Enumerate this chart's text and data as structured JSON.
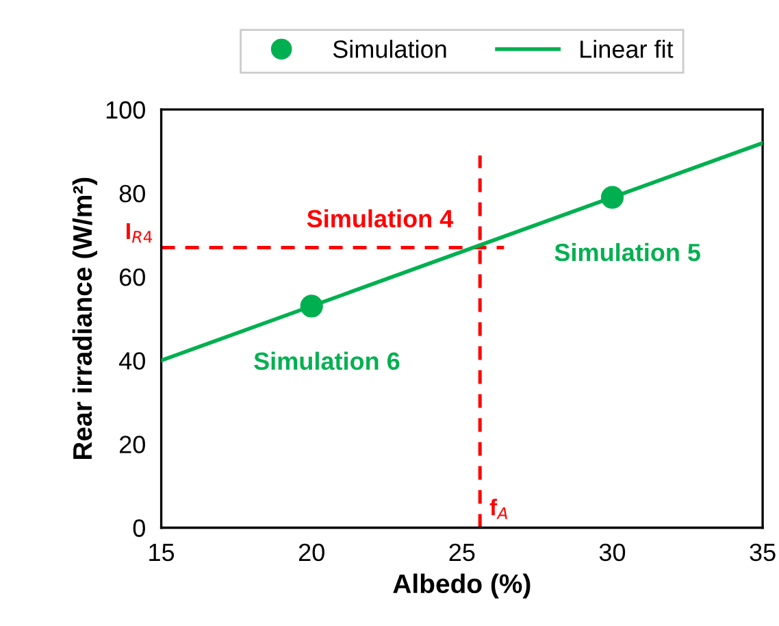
{
  "chart_data": {
    "type": "scatter",
    "xlabel": "Albedo (%)",
    "ylabel": "Rear irradiance (W/m²)",
    "xlim": [
      15,
      35
    ],
    "ylim": [
      0,
      100
    ],
    "xticks": [
      15,
      20,
      25,
      30,
      35
    ],
    "yticks": [
      0,
      20,
      40,
      60,
      80,
      100
    ],
    "grid": false,
    "legend": "top",
    "series": [
      {
        "name": "Simulation",
        "color": "#00b050",
        "marker": "circle",
        "x": [
          20,
          30
        ],
        "values": [
          53,
          79
        ]
      },
      {
        "name": "Linear fit",
        "type": "line",
        "color": "#00b050",
        "line_style": "solid",
        "x": [
          15,
          35
        ],
        "values": [
          40,
          92
        ]
      }
    ],
    "ref_lines": [
      {
        "axis": "y",
        "value": 67,
        "label": "I$_{R4}$",
        "color": "#ff0000",
        "line_style": "dashed"
      },
      {
        "axis": "x",
        "value": 25.6,
        "label": "f$_{A}$",
        "color": "#ff0000",
        "line_style": "dashed"
      }
    ],
    "annotations": [
      {
        "text": "Simulation 4",
        "x": 25.6,
        "y": 67
      },
      {
        "text": "Simulation 5",
        "x": 30,
        "y": 79
      },
      {
        "text": "Simulation 6",
        "x": 20,
        "y": 53
      }
    ]
  }
}
